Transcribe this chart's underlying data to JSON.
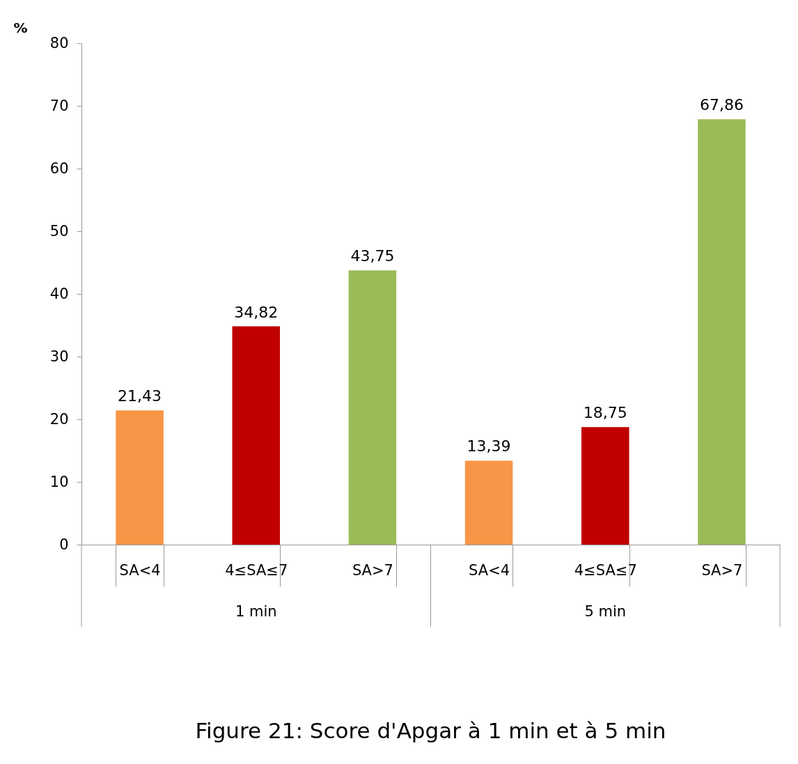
{
  "chart_data": {
    "type": "bar",
    "title": "Figure 21: Score d'Apgar à 1 min et à 5 min",
    "ylabel": "%",
    "categories": [
      "SA<4",
      "4≤SA≤7",
      "SA>7",
      "SA<4",
      "4≤SA≤7",
      "SA>7"
    ],
    "values": [
      21.43,
      34.82,
      43.75,
      13.39,
      18.75,
      67.86
    ],
    "colors": [
      "#f79646",
      "#c00000",
      "#9bbb59",
      "#f79646",
      "#c00000",
      "#9bbb59"
    ],
    "annotations": [
      "1 min",
      "5 min"
    ],
    "ylim": [
      0,
      80
    ],
    "yticks": [
      0,
      10,
      20,
      30,
      40,
      50,
      60,
      70,
      80
    ],
    "value_labels": [
      "21,43",
      "34,82",
      "43,75",
      "13,39",
      "18,75",
      "67,86"
    ],
    "grid": false
  }
}
